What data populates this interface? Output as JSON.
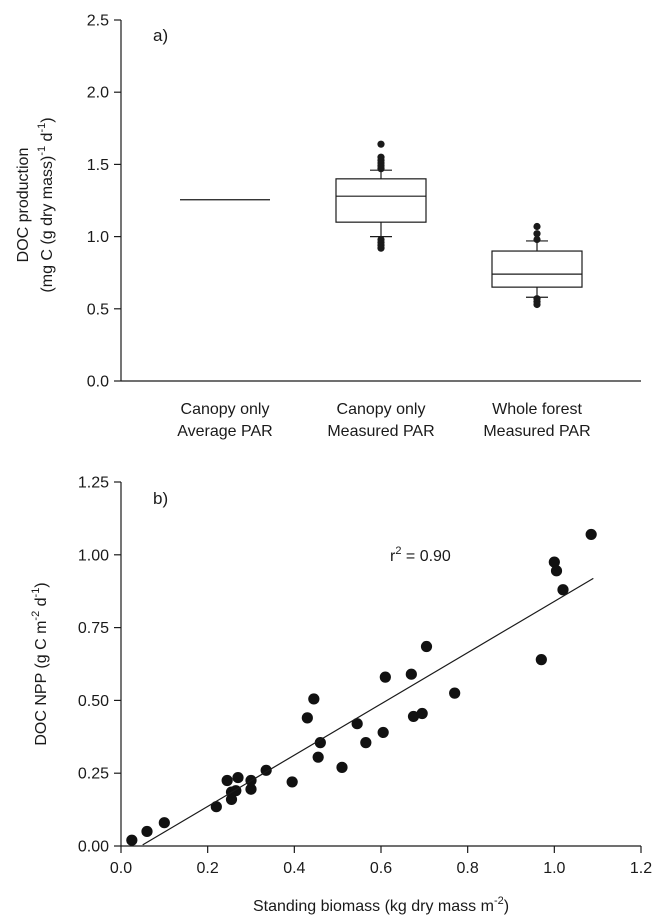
{
  "chart_data": [
    {
      "type": "box",
      "panel_label": "a)",
      "ylabel_line1": "DOC production",
      "ylabel_line2": "(mg C (g dry mass)",
      "ylabel_sup1": "-1",
      "ylabel_mid": " d",
      "ylabel_sup2": "-1",
      "ylabel_end": ")",
      "ylim": [
        0,
        2.5
      ],
      "yticks": [
        "0.0",
        "0.5",
        "1.0",
        "1.5",
        "2.0",
        "2.5"
      ],
      "ytick_values": [
        0,
        0.5,
        1.0,
        1.5,
        2.0,
        2.5
      ],
      "categories": [
        {
          "line1": "Canopy only",
          "line2": "Average PAR"
        },
        {
          "line1": "Canopy only",
          "line2": "Measured PAR"
        },
        {
          "line1": "Whole forest",
          "line2": "Measured PAR"
        }
      ],
      "boxes": [
        {
          "min": 1.255,
          "q1": 1.255,
          "median": 1.255,
          "q3": 1.255,
          "max": 1.255,
          "outliers": []
        },
        {
          "min": 1.0,
          "q1": 1.1,
          "median": 1.28,
          "q3": 1.4,
          "max": 1.46,
          "outliers": [
            0.92,
            0.94,
            0.96,
            0.98,
            1.47,
            1.49,
            1.51,
            1.53,
            1.55,
            1.64
          ]
        },
        {
          "min": 0.58,
          "q1": 0.65,
          "median": 0.74,
          "q3": 0.9,
          "max": 0.97,
          "outliers": [
            0.53,
            0.55,
            0.57,
            0.98,
            1.02,
            1.07
          ]
        }
      ]
    },
    {
      "type": "scatter",
      "panel_label": "b)",
      "xlabel_main": "Standing biomass (kg dry mass m",
      "xlabel_sup": "-2",
      "xlabel_end": ")",
      "ylabel_main": "DOC NPP (g C m",
      "ylabel_sup1": "-2",
      "ylabel_mid": " d",
      "ylabel_sup2": "-1",
      "ylabel_end": ")",
      "annotation_main": "r",
      "annotation_sup": "2",
      "annotation_end": " = 0.90",
      "xlim": [
        0,
        1.2
      ],
      "ylim": [
        0,
        1.25
      ],
      "xticks": [
        "0.0",
        "0.2",
        "0.4",
        "0.6",
        "0.8",
        "1.0",
        "1.2"
      ],
      "xtick_values": [
        0,
        0.2,
        0.4,
        0.6,
        0.8,
        1.0,
        1.2
      ],
      "yticks": [
        "0.00",
        "0.25",
        "0.50",
        "0.75",
        "1.00",
        "1.25"
      ],
      "ytick_values": [
        0,
        0.25,
        0.5,
        0.75,
        1.0,
        1.25
      ],
      "points": [
        [
          0.025,
          0.02
        ],
        [
          0.06,
          0.05
        ],
        [
          0.1,
          0.08
        ],
        [
          0.22,
          0.135
        ],
        [
          0.245,
          0.225
        ],
        [
          0.255,
          0.16
        ],
        [
          0.255,
          0.185
        ],
        [
          0.265,
          0.19
        ],
        [
          0.27,
          0.235
        ],
        [
          0.3,
          0.195
        ],
        [
          0.3,
          0.225
        ],
        [
          0.335,
          0.26
        ],
        [
          0.395,
          0.22
        ],
        [
          0.43,
          0.44
        ],
        [
          0.445,
          0.505
        ],
        [
          0.455,
          0.305
        ],
        [
          0.46,
          0.355
        ],
        [
          0.51,
          0.27
        ],
        [
          0.545,
          0.42
        ],
        [
          0.565,
          0.355
        ],
        [
          0.605,
          0.39
        ],
        [
          0.61,
          0.58
        ],
        [
          0.67,
          0.59
        ],
        [
          0.675,
          0.445
        ],
        [
          0.695,
          0.455
        ],
        [
          0.705,
          0.685
        ],
        [
          0.77,
          0.525
        ],
        [
          0.97,
          0.64
        ],
        [
          1.0,
          0.975
        ],
        [
          1.005,
          0.945
        ],
        [
          1.02,
          0.88
        ],
        [
          1.085,
          1.07
        ]
      ],
      "regression": {
        "x_start": 0.05,
        "x_end": 1.09,
        "slope": 0.88,
        "intercept": -0.04
      }
    }
  ]
}
